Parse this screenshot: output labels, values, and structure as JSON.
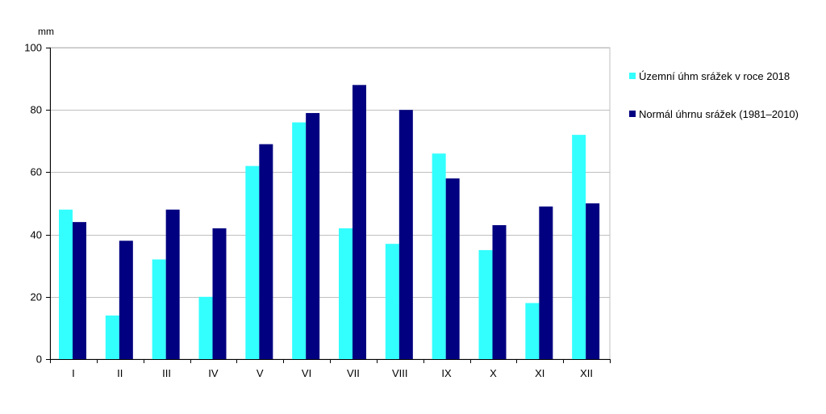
{
  "chart_data": {
    "type": "bar",
    "ylabel": "mm",
    "ylim": [
      0,
      100
    ],
    "yticks": [
      0,
      20,
      40,
      60,
      80,
      100
    ],
    "categories": [
      "I",
      "II",
      "III",
      "IV",
      "V",
      "VI",
      "VII",
      "VIII",
      "IX",
      "X",
      "XI",
      "XII"
    ],
    "grid": true,
    "legend_position": "right",
    "series": [
      {
        "name": "Územní úhm srážek v roce 2018",
        "color": "#33FFFF",
        "values": [
          48,
          14,
          32,
          20,
          62,
          76,
          42,
          37,
          66,
          35,
          18,
          72
        ]
      },
      {
        "name": "Normál úhrnu srážek (1981–2010)",
        "color": "#000080",
        "values": [
          44,
          38,
          48,
          42,
          69,
          79,
          88,
          80,
          58,
          43,
          49,
          50
        ]
      }
    ]
  }
}
